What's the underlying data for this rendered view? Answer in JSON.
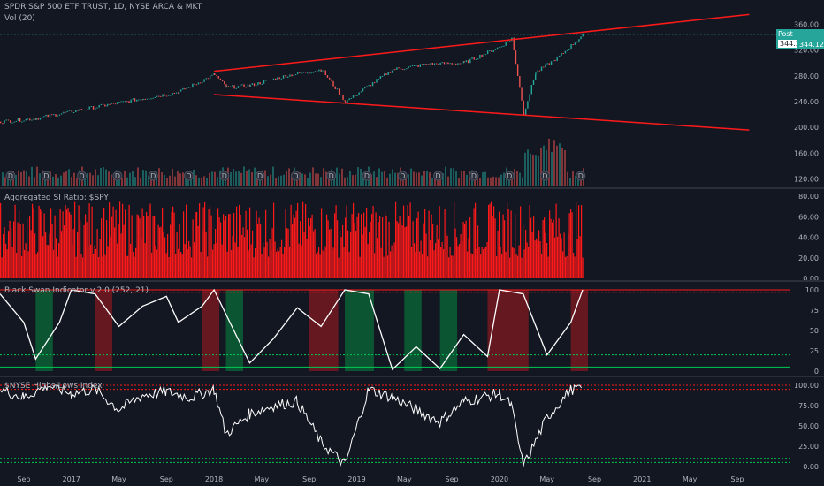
{
  "header": {
    "symbol_line": "SPDR S&P 500 ETF TRUST, 1D, NYSE ARCA & MKT",
    "volume_line": "Vol (20)"
  },
  "price_tags": {
    "post_label": "Post",
    "post_value": "344.36",
    "last_value": "344.12"
  },
  "colors": {
    "bg": "#131722",
    "up": "#26a69a",
    "down": "#ef5350",
    "red": "#ff1a1a",
    "green": "#00c853",
    "white": "#ffffff"
  },
  "chart_data": [
    {
      "type": "line",
      "title": "SPDR S&P 500 ETF TRUST, 1D, NYSE ARCA & MKT",
      "y_ticks": [
        "360.00",
        "320.00",
        "280.00",
        "240.00",
        "200.00",
        "160.00",
        "120.00"
      ],
      "ylim": [
        110,
        370
      ],
      "x": [
        "2016-07",
        "2016-10",
        "2017-01",
        "2017-04",
        "2017-07",
        "2017-10",
        "2018-01",
        "2018-02",
        "2018-04",
        "2018-07",
        "2018-10",
        "2018-12",
        "2019-04",
        "2019-07",
        "2019-10",
        "2020-01",
        "2020-02",
        "2020-03",
        "2020-04",
        "2020-06",
        "2020-08"
      ],
      "series": [
        {
          "values": [
            209,
            214,
            225,
            235,
            245,
            255,
            282,
            262,
            265,
            280,
            290,
            240,
            290,
            298,
            300,
            325,
            338,
            222,
            285,
            310,
            344
          ]
        }
      ],
      "trendlines": [
        {
          "from": [
            "2018-01",
            287
          ],
          "to": [
            "2021-10",
            375
          ]
        },
        {
          "from": [
            "2018-01",
            251
          ],
          "to": [
            "2021-10",
            196
          ]
        }
      ],
      "horizontal_line": 344.36,
      "volume_label": "Vol (20)"
    },
    {
      "type": "bar",
      "title": "Aggregated SI Ratio: $SPY",
      "y_ticks": [
        "80.00",
        "60.00",
        "40.00",
        "20.00",
        "0.00"
      ],
      "ylim": [
        0,
        80
      ],
      "value_range": [
        20,
        75
      ]
    },
    {
      "type": "line",
      "title": "Black Swan Indicator v.2.0 (252, 21)",
      "y_ticks": [
        "100",
        "75",
        "50",
        "25",
        "0"
      ],
      "ylim": [
        0,
        100
      ],
      "levels": [
        100,
        97,
        20,
        5
      ],
      "x": [
        "2016-07",
        "2016-09",
        "2016-10",
        "2016-12",
        "2017-01",
        "2017-03",
        "2017-05",
        "2017-07",
        "2017-09",
        "2017-10",
        "2017-12",
        "2018-01",
        "2018-02",
        "2018-04",
        "2018-06",
        "2018-08",
        "2018-10",
        "2018-12",
        "2019-02",
        "2019-04",
        "2019-06",
        "2019-08",
        "2019-10",
        "2019-12",
        "2020-01",
        "2020-03",
        "2020-05",
        "2020-07",
        "2020-08"
      ],
      "values": [
        95,
        60,
        15,
        60,
        100,
        95,
        55,
        80,
        92,
        60,
        80,
        100,
        70,
        10,
        40,
        78,
        55,
        100,
        95,
        2,
        30,
        3,
        45,
        18,
        100,
        95,
        20,
        60,
        100
      ],
      "zones": [
        {
          "color": "green",
          "from": "2016-10",
          "to": "2016-11"
        },
        {
          "color": "red",
          "from": "2017-03",
          "to": "2017-04"
        },
        {
          "color": "red",
          "from": "2017-12",
          "to": "2018-01"
        },
        {
          "color": "green",
          "from": "2018-02",
          "to": "2018-03"
        },
        {
          "color": "red",
          "from": "2018-09",
          "to": "2018-11"
        },
        {
          "color": "green",
          "from": "2018-12",
          "to": "2019-02"
        },
        {
          "color": "green",
          "from": "2019-05",
          "to": "2019-06"
        },
        {
          "color": "green",
          "from": "2019-08",
          "to": "2019-09"
        },
        {
          "color": "red",
          "from": "2019-12",
          "to": "2020-03"
        },
        {
          "color": "red",
          "from": "2020-07",
          "to": "2020-08"
        }
      ]
    },
    {
      "type": "line",
      "title": "$NYSE Highs/Lows Index",
      "y_ticks": [
        "100.00",
        "75.00",
        "50.00",
        "25.00",
        "0.00"
      ],
      "ylim": [
        0,
        100
      ],
      "levels": [
        100,
        95,
        10,
        5
      ],
      "x": [
        "2016-07",
        "2016-09",
        "2016-11",
        "2017-01",
        "2017-03",
        "2017-05",
        "2017-07",
        "2017-09",
        "2017-11",
        "2018-01",
        "2018-02",
        "2018-04",
        "2018-06",
        "2018-08",
        "2018-10",
        "2018-12",
        "2019-02",
        "2019-04",
        "2019-06",
        "2019-08",
        "2019-10",
        "2020-01",
        "2020-02",
        "2020-03",
        "2020-05",
        "2020-07",
        "2020-08"
      ],
      "values": [
        95,
        85,
        100,
        90,
        95,
        70,
        88,
        92,
        85,
        95,
        40,
        65,
        75,
        80,
        30,
        2,
        95,
        85,
        70,
        55,
        80,
        90,
        75,
        0,
        60,
        95,
        97
      ]
    }
  ],
  "x_axis": {
    "labels": [
      "Sep",
      "2017",
      "May",
      "Sep",
      "2018",
      "May",
      "Sep",
      "2019",
      "May",
      "Sep",
      "2020",
      "May",
      "Sep",
      "2021",
      "May",
      "Sep"
    ]
  }
}
